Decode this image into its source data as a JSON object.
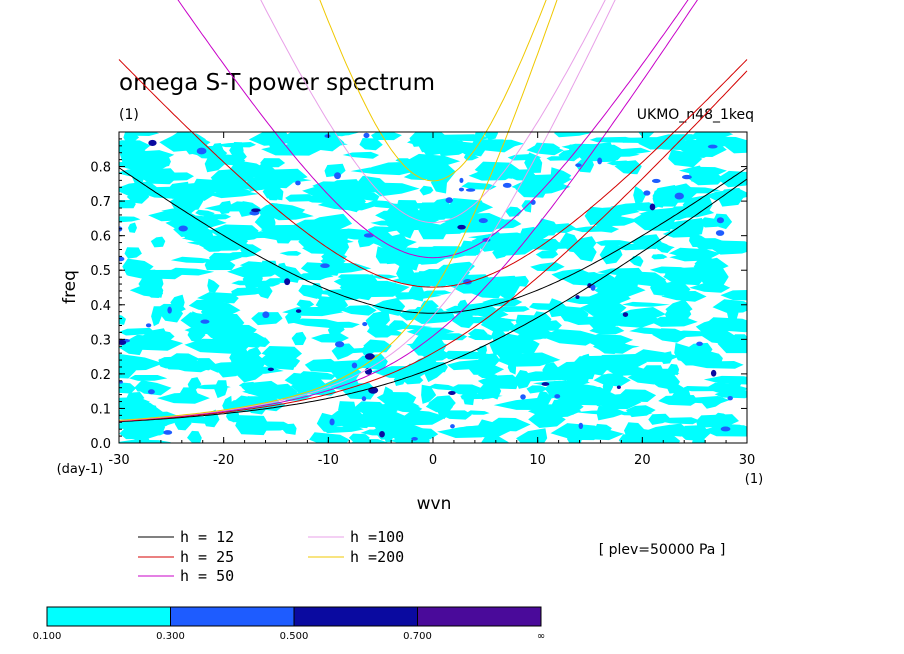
{
  "chart_data": {
    "type": "line",
    "title": "omega S-T power spectrum",
    "subtitle": "(1)",
    "dataset_label": "UKMO_n48_1keq",
    "xlabel": "wvn",
    "ylabel": "freq",
    "x_unit": "(1)",
    "y_unit": "(day-1)",
    "xlim": [
      -30,
      30
    ],
    "ylim": [
      0.0,
      0.9
    ],
    "x_ticks": [
      -30,
      -20,
      -10,
      0,
      10,
      20,
      30
    ],
    "x_tick_labels": [
      "-30",
      "-20",
      "-10",
      "0",
      "10",
      "20",
      "30"
    ],
    "y_ticks": [
      0.0,
      0.1,
      0.2,
      0.3,
      0.4,
      0.5,
      0.6,
      0.7,
      0.8
    ],
    "y_tick_labels": [
      "0.0",
      "0.1",
      "0.2",
      "0.3",
      "0.4",
      "0.5",
      "0.6",
      "0.7",
      "0.8"
    ],
    "level_note": "[ plev=50000 Pa ]",
    "series": [
      {
        "name": "h = 12",
        "h": 12,
        "color": "#000000",
        "label": "h = 12"
      },
      {
        "name": "h = 25",
        "h": 25,
        "color": "#d40000",
        "label": "h = 25"
      },
      {
        "name": "h = 50",
        "h": 50,
        "color": "#c800c8",
        "label": "h = 50"
      },
      {
        "name": "h =100",
        "h": 100,
        "color": "#e8a0e8",
        "label": "h =100"
      },
      {
        "name": "h =200",
        "h": 200,
        "color": "#f0c800",
        "label": "h =200"
      }
    ],
    "colorbar": {
      "colors": [
        "#00ffff",
        "#1e5cff",
        "#0a0aa0",
        "#4a0a9a"
      ],
      "labels": [
        "0.100",
        "0.300",
        "0.500",
        "0.700",
        "∞"
      ]
    },
    "contour_fill": "#00ffff"
  }
}
